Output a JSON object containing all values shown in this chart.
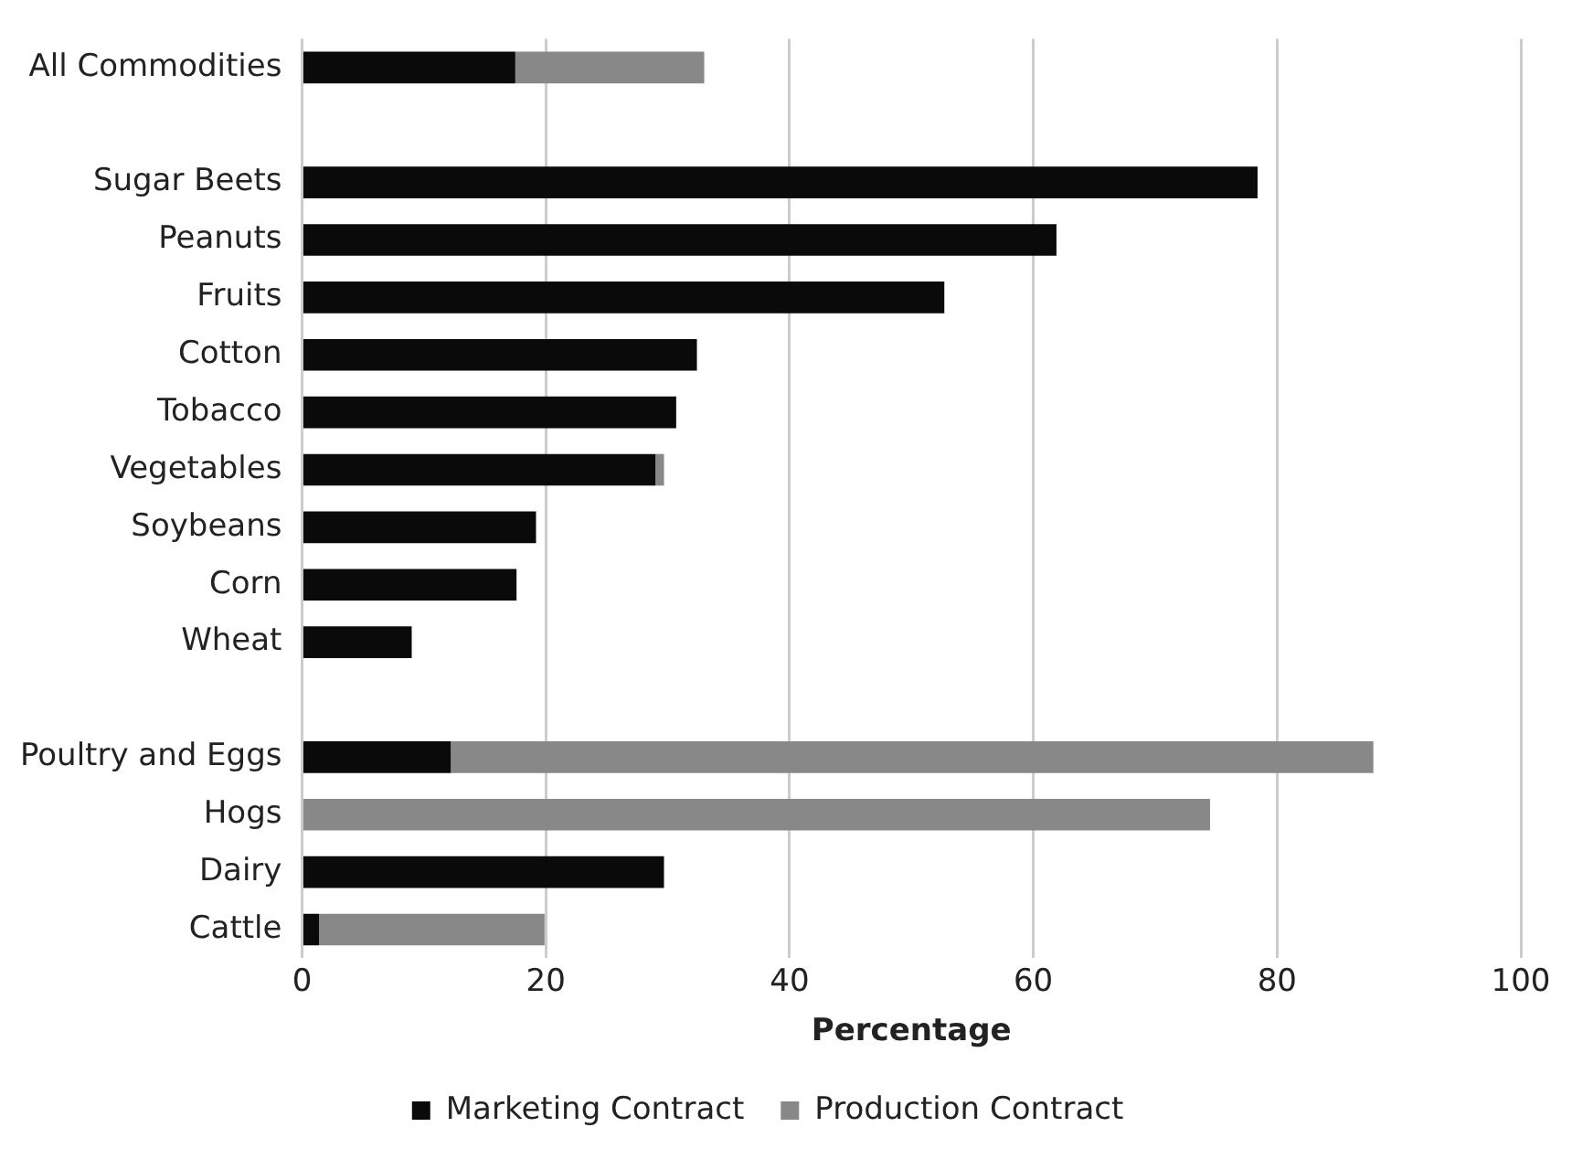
{
  "chart_data": {
    "type": "bar",
    "orientation": "horizontal",
    "stacked": true,
    "xlabel": "Percentage",
    "categories": [
      "All Commodities",
      null,
      "Sugar Beets",
      "Peanuts",
      "Fruits",
      "Cotton",
      "Tobacco",
      "Vegetables",
      "Soybeans",
      "Corn",
      "Wheat",
      null,
      "Poultry and Eggs",
      "Hogs",
      "Dairy",
      "Cattle"
    ],
    "series": [
      {
        "name": "Marketing Contract",
        "color": "#0a0a0a",
        "values": [
          17.5,
          null,
          78.4,
          61.9,
          52.7,
          32.4,
          30.7,
          29.0,
          19.2,
          17.6,
          9.0,
          null,
          12.2,
          null,
          29.7,
          1.4
        ]
      },
      {
        "name": "Production Contract",
        "color": "#888888",
        "values": [
          15.5,
          null,
          null,
          null,
          null,
          null,
          null,
          0.7,
          null,
          null,
          null,
          null,
          75.7,
          74.5,
          null,
          18.5
        ]
      }
    ],
    "xlim": [
      0,
      100
    ],
    "xticks": [
      0,
      20,
      40,
      60,
      80,
      100
    ],
    "grid": "x",
    "legend": "bottom"
  }
}
